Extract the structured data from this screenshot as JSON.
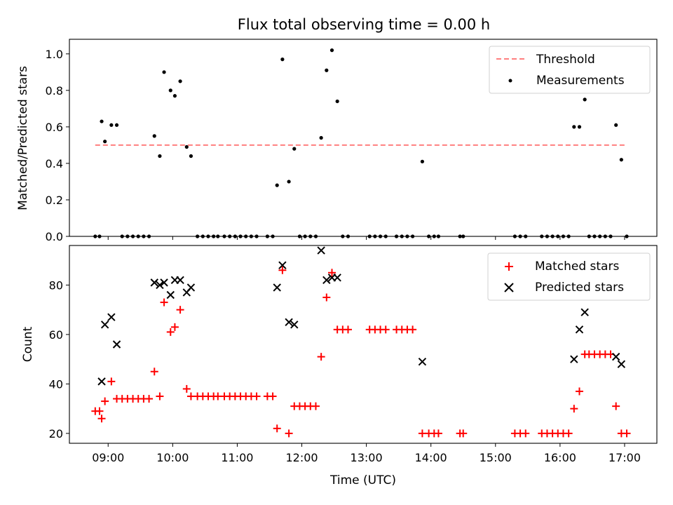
{
  "chart_data": [
    {
      "type": "scatter",
      "title": "Flux total observing time = 0.00 h",
      "ylabel": "Matched/Predicted stars",
      "xlabel": "",
      "xlim": [
        "08:24",
        "17:30"
      ],
      "ylim": [
        0,
        1.08
      ],
      "yticks": [
        "0.0",
        "0.2",
        "0.4",
        "0.6",
        "0.8",
        "1.0"
      ],
      "grid": false,
      "legend_position": "top-right",
      "series": [
        {
          "name": "Threshold",
          "kind": "dashed-line",
          "color": "#ff7f7f",
          "points": [
            [
              "08:48",
              0.5
            ],
            [
              "17:00",
              0.5
            ]
          ]
        },
        {
          "name": "Measurements",
          "kind": "dots",
          "color": "#000000",
          "points": [
            [
              "08:48",
              0
            ],
            [
              "08:52",
              0
            ],
            [
              "08:54",
              0.63
            ],
            [
              "08:57",
              0.52
            ],
            [
              "09:03",
              0.61
            ],
            [
              "09:08",
              0.61
            ],
            [
              "09:13",
              0
            ],
            [
              "09:18",
              0
            ],
            [
              "09:23",
              0
            ],
            [
              "09:28",
              0
            ],
            [
              "09:33",
              0
            ],
            [
              "09:38",
              0
            ],
            [
              "09:43",
              0.55
            ],
            [
              "09:48",
              0.44
            ],
            [
              "09:52",
              0.9
            ],
            [
              "09:58",
              0.8
            ],
            [
              "10:02",
              0.77
            ],
            [
              "10:07",
              0.85
            ],
            [
              "10:13",
              0.49
            ],
            [
              "10:17",
              0.44
            ],
            [
              "10:23",
              0
            ],
            [
              "10:28",
              0
            ],
            [
              "10:33",
              0
            ],
            [
              "10:38",
              0
            ],
            [
              "10:42",
              0
            ],
            [
              "10:48",
              0
            ],
            [
              "10:53",
              0
            ],
            [
              "10:58",
              0
            ],
            [
              "11:03",
              0
            ],
            [
              "11:08",
              0
            ],
            [
              "11:13",
              0
            ],
            [
              "11:18",
              0
            ],
            [
              "11:28",
              0
            ],
            [
              "11:33",
              0
            ],
            [
              "11:37",
              0.28
            ],
            [
              "11:42",
              0.97
            ],
            [
              "11:48",
              0.3
            ],
            [
              "11:53",
              0.48
            ],
            [
              "11:58",
              0
            ],
            [
              "12:03",
              0
            ],
            [
              "12:08",
              0
            ],
            [
              "12:13",
              0
            ],
            [
              "12:18",
              0.54
            ],
            [
              "12:23",
              0.91
            ],
            [
              "12:28",
              1.02
            ],
            [
              "12:33",
              0.74
            ],
            [
              "12:38",
              0
            ],
            [
              "12:43",
              0
            ],
            [
              "13:03",
              0
            ],
            [
              "13:08",
              0
            ],
            [
              "13:13",
              0
            ],
            [
              "13:18",
              0
            ],
            [
              "13:28",
              0
            ],
            [
              "13:33",
              0
            ],
            [
              "13:38",
              0
            ],
            [
              "13:43",
              0
            ],
            [
              "13:52",
              0.41
            ],
            [
              "13:58",
              0
            ],
            [
              "14:03",
              0
            ],
            [
              "14:07",
              0
            ],
            [
              "14:27",
              0
            ],
            [
              "14:30",
              0
            ],
            [
              "15:18",
              0
            ],
            [
              "15:23",
              0
            ],
            [
              "15:28",
              0
            ],
            [
              "15:43",
              0
            ],
            [
              "15:48",
              0
            ],
            [
              "15:53",
              0
            ],
            [
              "15:58",
              0
            ],
            [
              "16:03",
              0
            ],
            [
              "16:08",
              0
            ],
            [
              "16:13",
              0.6
            ],
            [
              "16:18",
              0.6
            ],
            [
              "16:23",
              0.75
            ],
            [
              "16:27",
              0
            ],
            [
              "16:32",
              0
            ],
            [
              "16:37",
              0
            ],
            [
              "16:42",
              0
            ],
            [
              "16:47",
              0
            ],
            [
              "16:52",
              0.61
            ],
            [
              "16:57",
              0.42
            ],
            [
              "17:02",
              0
            ]
          ]
        }
      ]
    },
    {
      "type": "scatter",
      "title": "",
      "ylabel": "Count",
      "xlabel": "Time (UTC)",
      "xlim": [
        "08:24",
        "17:30"
      ],
      "ylim": [
        16,
        96
      ],
      "yticks": [
        "20",
        "40",
        "60",
        "80"
      ],
      "xticks": [
        "09:00",
        "10:00",
        "11:00",
        "12:00",
        "13:00",
        "14:00",
        "15:00",
        "16:00",
        "17:00"
      ],
      "grid": false,
      "legend_position": "top-right",
      "series": [
        {
          "name": "Matched stars",
          "marker": "plus",
          "color": "#ff0000",
          "points": [
            [
              "08:48",
              29
            ],
            [
              "08:52",
              29
            ],
            [
              "08:54",
              26
            ],
            [
              "08:57",
              33
            ],
            [
              "09:03",
              41
            ],
            [
              "09:08",
              34
            ],
            [
              "09:13",
              34
            ],
            [
              "09:18",
              34
            ],
            [
              "09:23",
              34
            ],
            [
              "09:28",
              34
            ],
            [
              "09:33",
              34
            ],
            [
              "09:38",
              34
            ],
            [
              "09:43",
              45
            ],
            [
              "09:48",
              35
            ],
            [
              "09:52",
              73
            ],
            [
              "09:58",
              61
            ],
            [
              "10:02",
              63
            ],
            [
              "10:07",
              70
            ],
            [
              "10:13",
              38
            ],
            [
              "10:17",
              35
            ],
            [
              "10:23",
              35
            ],
            [
              "10:28",
              35
            ],
            [
              "10:33",
              35
            ],
            [
              "10:38",
              35
            ],
            [
              "10:42",
              35
            ],
            [
              "10:48",
              35
            ],
            [
              "10:53",
              35
            ],
            [
              "10:58",
              35
            ],
            [
              "11:03",
              35
            ],
            [
              "11:08",
              35
            ],
            [
              "11:13",
              35
            ],
            [
              "11:18",
              35
            ],
            [
              "11:28",
              35
            ],
            [
              "11:33",
              35
            ],
            [
              "11:37",
              22
            ],
            [
              "11:42",
              86
            ],
            [
              "11:48",
              20
            ],
            [
              "11:53",
              31
            ],
            [
              "11:58",
              31
            ],
            [
              "12:03",
              31
            ],
            [
              "12:08",
              31
            ],
            [
              "12:13",
              31
            ],
            [
              "12:18",
              51
            ],
            [
              "12:23",
              75
            ],
            [
              "12:28",
              85
            ],
            [
              "12:33",
              62
            ],
            [
              "12:38",
              62
            ],
            [
              "12:43",
              62
            ],
            [
              "13:03",
              62
            ],
            [
              "13:08",
              62
            ],
            [
              "13:13",
              62
            ],
            [
              "13:18",
              62
            ],
            [
              "13:28",
              62
            ],
            [
              "13:33",
              62
            ],
            [
              "13:38",
              62
            ],
            [
              "13:43",
              62
            ],
            [
              "13:52",
              20
            ],
            [
              "13:58",
              20
            ],
            [
              "14:03",
              20
            ],
            [
              "14:07",
              20
            ],
            [
              "14:27",
              20
            ],
            [
              "14:30",
              20
            ],
            [
              "15:18",
              20
            ],
            [
              "15:23",
              20
            ],
            [
              "15:28",
              20
            ],
            [
              "15:43",
              20
            ],
            [
              "15:48",
              20
            ],
            [
              "15:53",
              20
            ],
            [
              "15:58",
              20
            ],
            [
              "16:03",
              20
            ],
            [
              "16:08",
              20
            ],
            [
              "16:13",
              30
            ],
            [
              "16:18",
              37
            ],
            [
              "16:23",
              52
            ],
            [
              "16:27",
              52
            ],
            [
              "16:32",
              52
            ],
            [
              "16:37",
              52
            ],
            [
              "16:42",
              52
            ],
            [
              "16:47",
              52
            ],
            [
              "16:52",
              31
            ],
            [
              "16:57",
              20
            ],
            [
              "17:02",
              20
            ]
          ]
        },
        {
          "name": "Predicted stars",
          "marker": "x",
          "color": "#000000",
          "points": [
            [
              "08:54",
              41
            ],
            [
              "08:57",
              64
            ],
            [
              "09:03",
              67
            ],
            [
              "09:08",
              56
            ],
            [
              "09:43",
              81
            ],
            [
              "09:48",
              80
            ],
            [
              "09:52",
              81
            ],
            [
              "09:58",
              76
            ],
            [
              "10:02",
              82
            ],
            [
              "10:07",
              82
            ],
            [
              "10:13",
              77
            ],
            [
              "10:17",
              79
            ],
            [
              "11:37",
              79
            ],
            [
              "11:42",
              88
            ],
            [
              "11:48",
              65
            ],
            [
              "11:53",
              64
            ],
            [
              "12:18",
              94
            ],
            [
              "12:23",
              82
            ],
            [
              "12:28",
              83
            ],
            [
              "12:33",
              83
            ],
            [
              "13:52",
              49
            ],
            [
              "16:13",
              50
            ],
            [
              "16:18",
              62
            ],
            [
              "16:23",
              69
            ],
            [
              "16:52",
              51
            ],
            [
              "16:57",
              48
            ]
          ]
        }
      ]
    }
  ]
}
